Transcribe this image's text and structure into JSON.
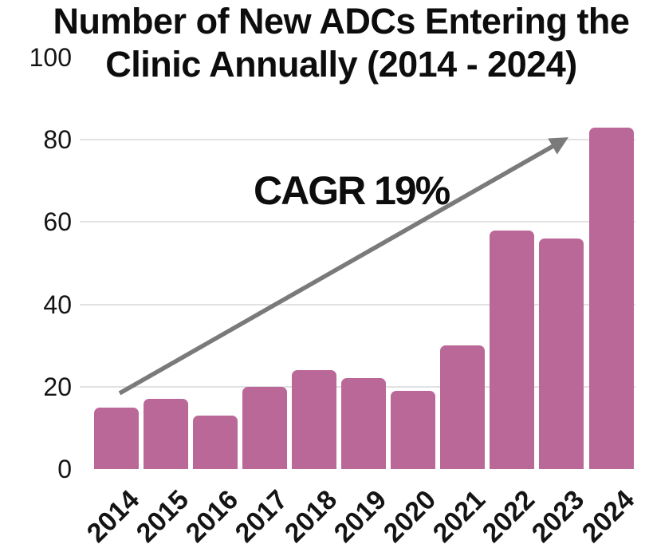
{
  "title": {
    "line1": "Number of New ADCs Entering the",
    "line2": "Clinic Annually (2014 - 2024)"
  },
  "annotation": {
    "cagr_label": "CAGR 19%"
  },
  "chart_data": {
    "type": "bar",
    "title": "Number of New ADCs Entering the Clinic Annually (2014 - 2024)",
    "categories": [
      "2014",
      "2015",
      "2016",
      "2017",
      "2018",
      "2019",
      "2020",
      "2021",
      "2022",
      "2023",
      "2024"
    ],
    "values": [
      15,
      17,
      13,
      20,
      24,
      22,
      19,
      30,
      58,
      56,
      83
    ],
    "xlabel": "",
    "ylabel": "",
    "ylim": [
      0,
      100
    ],
    "yticks": [
      0,
      20,
      40,
      60,
      80,
      100
    ],
    "gridlines_at": [
      20,
      40,
      60,
      80
    ],
    "grid": "horizontal",
    "legend": "none",
    "annotation": "CAGR 19%",
    "annotation_arrow": {
      "from": {
        "year": "2014",
        "value": 19
      },
      "to": {
        "year": "2024",
        "value": 81
      }
    },
    "colors": {
      "bar": "#ba6898",
      "arrow": "#7a7a7a",
      "gridline": "#e2e2e2",
      "text": "#111111",
      "background": "#ffffff"
    }
  }
}
